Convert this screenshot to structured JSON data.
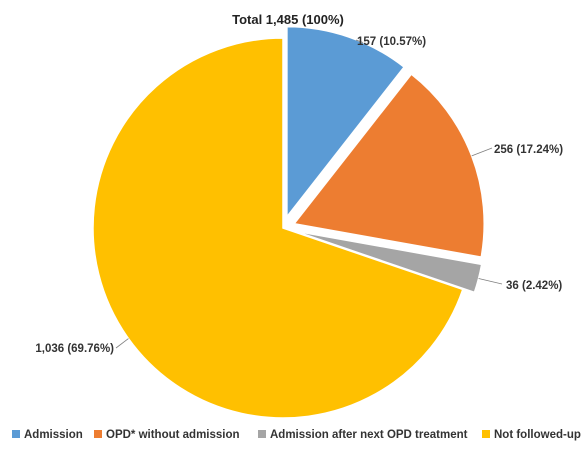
{
  "chart_data": {
    "type": "pie",
    "title": "Total 1,485 (100%)",
    "slices": [
      {
        "name": "Admission",
        "value": 157,
        "label": "157 (10.57%)",
        "color": "#5b9bd5",
        "exploded": true
      },
      {
        "name": "OPD* without admission",
        "value": 256,
        "label": "256 (17.24%)",
        "color": "#ed7d31",
        "exploded": true
      },
      {
        "name": "Admission after next OPD treatment",
        "value": 36,
        "label": "36 (2.42%)",
        "color": "#a5a5a5",
        "exploded": true
      },
      {
        "name": "Not followed-up",
        "value": 1036,
        "label": "1,036 (69.76%)",
        "color": "#ffc000",
        "exploded": false
      }
    ],
    "legend": {
      "position": "bottom"
    }
  }
}
